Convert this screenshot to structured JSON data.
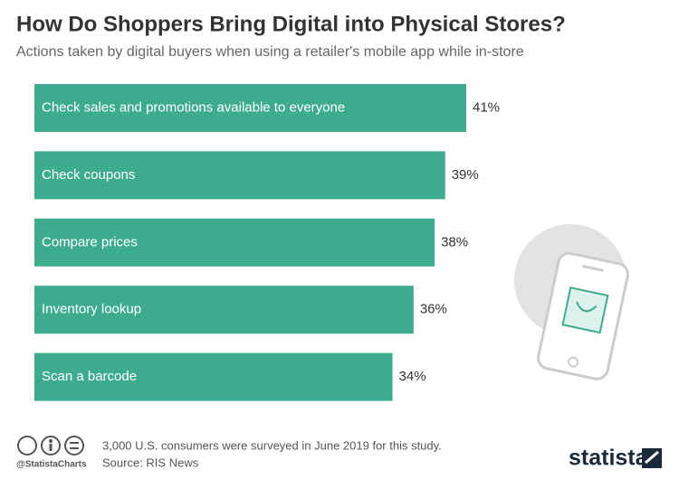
{
  "chart_data": {
    "type": "bar",
    "orientation": "horizontal",
    "title": "How Do Shoppers Bring Digital into Physical Stores?",
    "subtitle": "Actions taken by digital buyers when using a retailer's mobile app while in-store",
    "categories": [
      "Check sales and promotions available to everyone",
      "Check coupons",
      "Compare prices",
      "Inventory lookup",
      "Scan a barcode"
    ],
    "values": [
      41,
      39,
      38,
      36,
      34
    ],
    "value_labels": [
      "41%",
      "39%",
      "38%",
      "36%",
      "34%"
    ],
    "color": "#3dab8e",
    "note": "3,000 U.S. consumers were surveyed in June 2019 for this study.",
    "source": "Source: RIS News",
    "handle": "@StatistaCharts",
    "brand": "statista"
  }
}
